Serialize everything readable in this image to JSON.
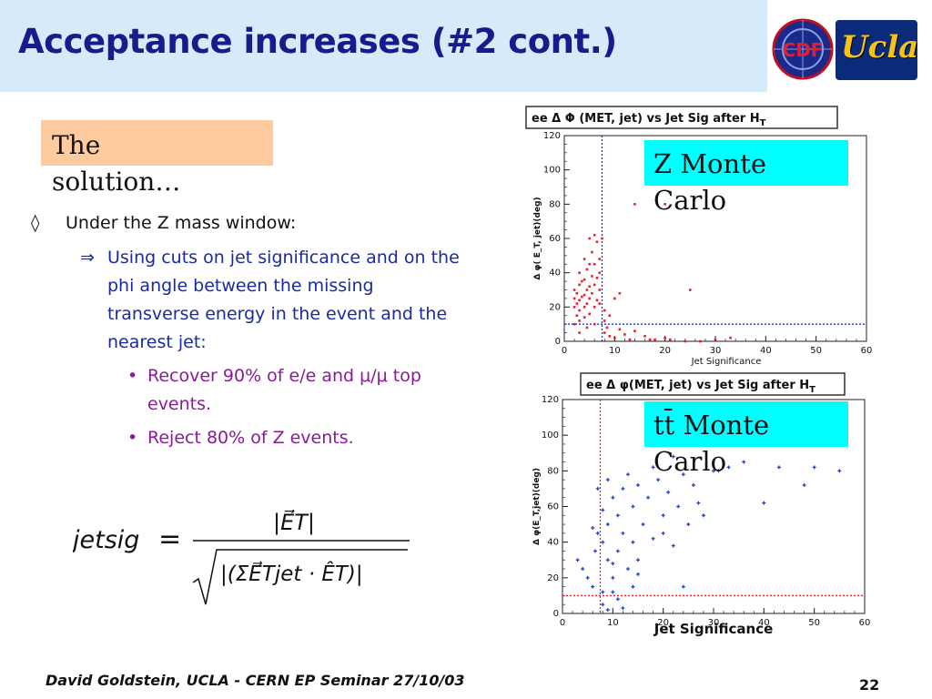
{
  "slide": {
    "title": "Acceptance increases (#2 cont.)",
    "tag": "The solution…",
    "bullet1": {
      "marker": "◊",
      "text": "Under the Z mass window:"
    },
    "bullet2": {
      "marker": "⇒",
      "text": "Using cuts on jet significance and on the phi angle between the missing transverse energy in the event and the nearest jet:"
    },
    "subbullets": [
      {
        "marker": "•",
        "text": "Recover 90% of e/e and μ/μ top events."
      },
      {
        "marker": "•",
        "text": "Reject 80% of Z events."
      }
    ],
    "footer_left": "David Goldstein, UCLA - CERN EP Seminar 27/10/03",
    "page_number": "22",
    "logos": {
      "cdf": "CDF",
      "ucla": "Ucla"
    }
  },
  "formula": {
    "lhs": "jetsig",
    "eq": "=",
    "numerator": "|E⃗T|",
    "denominator": "|(ΣE⃗Tjet · ÊT)|"
  },
  "colors": {
    "title": "#1a1a8c",
    "title_bg": "#d6ebf9",
    "tag_bg": "#fecb9e",
    "label_bg": "#00ffff",
    "level2": "#1a2aa0",
    "level3": "#8a1a9a",
    "plot1_points": "#e8202a",
    "plot2_points": "#2040d0"
  },
  "chart_data": [
    {
      "type": "scatter",
      "title": "ee Δ Φ (MET, jet) vs Jet Sig after H",
      "title_sub": "T",
      "label": "Z Monte Carlo",
      "xlabel": "Jet Significance",
      "ylabel": "Δ φ(  E_T, jet)(deg)",
      "xlim": [
        0,
        60
      ],
      "ylim": [
        0,
        120
      ],
      "xticks": [
        0,
        10,
        20,
        30,
        40,
        50,
        60
      ],
      "yticks": [
        0,
        20,
        40,
        60,
        80,
        100,
        120
      ],
      "cut_x": 7.5,
      "cut_y": 10,
      "points": [
        [
          2,
          10
        ],
        [
          2,
          20
        ],
        [
          2,
          25
        ],
        [
          2,
          30
        ],
        [
          2.5,
          22
        ],
        [
          2.5,
          28
        ],
        [
          3,
          18
        ],
        [
          3,
          24
        ],
        [
          3,
          33
        ],
        [
          3,
          40
        ],
        [
          3.5,
          26
        ],
        [
          3.5,
          35
        ],
        [
          4,
          20
        ],
        [
          4,
          27
        ],
        [
          4,
          36
        ],
        [
          4,
          48
        ],
        [
          4.5,
          22
        ],
        [
          4.5,
          30
        ],
        [
          4.5,
          42
        ],
        [
          5,
          25
        ],
        [
          5,
          32
        ],
        [
          5,
          45
        ],
        [
          5,
          60
        ],
        [
          5.5,
          28
        ],
        [
          5.5,
          38
        ],
        [
          5.5,
          52
        ],
        [
          6,
          20
        ],
        [
          6,
          33
        ],
        [
          6,
          45
        ],
        [
          6,
          62
        ],
        [
          6.5,
          24
        ],
        [
          6.5,
          37
        ],
        [
          6.5,
          58
        ],
        [
          7,
          30
        ],
        [
          7,
          40
        ],
        [
          7,
          48
        ],
        [
          7.5,
          60
        ],
        [
          8,
          12
        ],
        [
          8,
          5
        ],
        [
          8,
          18
        ],
        [
          8.5,
          8
        ],
        [
          9,
          3
        ],
        [
          9,
          15
        ],
        [
          10,
          2
        ],
        [
          10,
          25
        ],
        [
          11,
          7
        ],
        [
          11,
          28
        ],
        [
          12,
          4
        ],
        [
          13,
          1
        ],
        [
          14,
          6
        ],
        [
          16,
          3
        ],
        [
          18,
          1
        ],
        [
          20,
          2
        ],
        [
          21,
          1
        ],
        [
          24,
          0
        ],
        [
          25,
          30
        ],
        [
          27,
          0
        ],
        [
          30,
          1
        ],
        [
          33,
          2
        ],
        [
          14,
          80
        ],
        [
          20,
          80
        ],
        [
          17,
          1
        ],
        [
          3,
          12
        ],
        [
          4,
          14
        ],
        [
          5,
          16
        ],
        [
          2.5,
          15
        ],
        [
          6,
          10
        ],
        [
          7,
          22
        ],
        [
          3,
          5
        ],
        [
          4.5,
          8
        ]
      ]
    },
    {
      "type": "scatter",
      "title": "ee Δ φ(MET, jet) vs Jet Sig after H",
      "title_sub": "T",
      "label": "tt̄ Monte Carlo",
      "xlabel": "Jet Significance",
      "ylabel": "Δ φ(E_T,jet)(deg)",
      "xlim": [
        0,
        60
      ],
      "ylim": [
        0,
        120
      ],
      "xticks": [
        0,
        10,
        20,
        30,
        40,
        50,
        60
      ],
      "yticks": [
        0,
        20,
        40,
        60,
        80,
        100,
        120
      ],
      "cut_x": 7.5,
      "cut_y": 10,
      "points": [
        [
          3,
          30
        ],
        [
          4,
          25
        ],
        [
          5,
          20
        ],
        [
          6,
          15
        ],
        [
          6.5,
          35
        ],
        [
          7,
          45
        ],
        [
          7,
          70
        ],
        [
          8,
          12
        ],
        [
          8,
          40
        ],
        [
          8,
          58
        ],
        [
          9,
          30
        ],
        [
          9,
          50
        ],
        [
          10,
          20
        ],
        [
          10,
          65
        ],
        [
          11,
          35
        ],
        [
          11,
          55
        ],
        [
          12,
          45
        ],
        [
          12,
          70
        ],
        [
          13,
          25
        ],
        [
          13,
          78
        ],
        [
          14,
          40
        ],
        [
          14,
          60
        ],
        [
          15,
          30
        ],
        [
          15,
          72
        ],
        [
          16,
          50
        ],
        [
          17,
          65
        ],
        [
          18,
          42
        ],
        [
          18,
          82
        ],
        [
          19,
          75
        ],
        [
          20,
          55
        ],
        [
          21,
          68
        ],
        [
          22,
          38
        ],
        [
          22,
          88
        ],
        [
          23,
          60
        ],
        [
          24,
          78
        ],
        [
          25,
          50
        ],
        [
          26,
          72
        ],
        [
          27,
          62
        ],
        [
          28,
          55
        ],
        [
          30,
          80
        ],
        [
          31,
          80
        ],
        [
          33,
          82
        ],
        [
          36,
          85
        ],
        [
          40,
          62
        ],
        [
          43,
          82
        ],
        [
          48,
          72
        ],
        [
          50,
          82
        ],
        [
          55,
          80
        ],
        [
          6,
          48
        ],
        [
          9,
          75
        ],
        [
          10,
          12
        ],
        [
          11,
          8
        ],
        [
          12,
          3
        ],
        [
          8,
          5
        ],
        [
          9,
          2
        ],
        [
          10,
          28
        ],
        [
          14,
          15
        ],
        [
          15,
          22
        ],
        [
          20,
          45
        ],
        [
          24,
          15
        ]
      ]
    }
  ]
}
